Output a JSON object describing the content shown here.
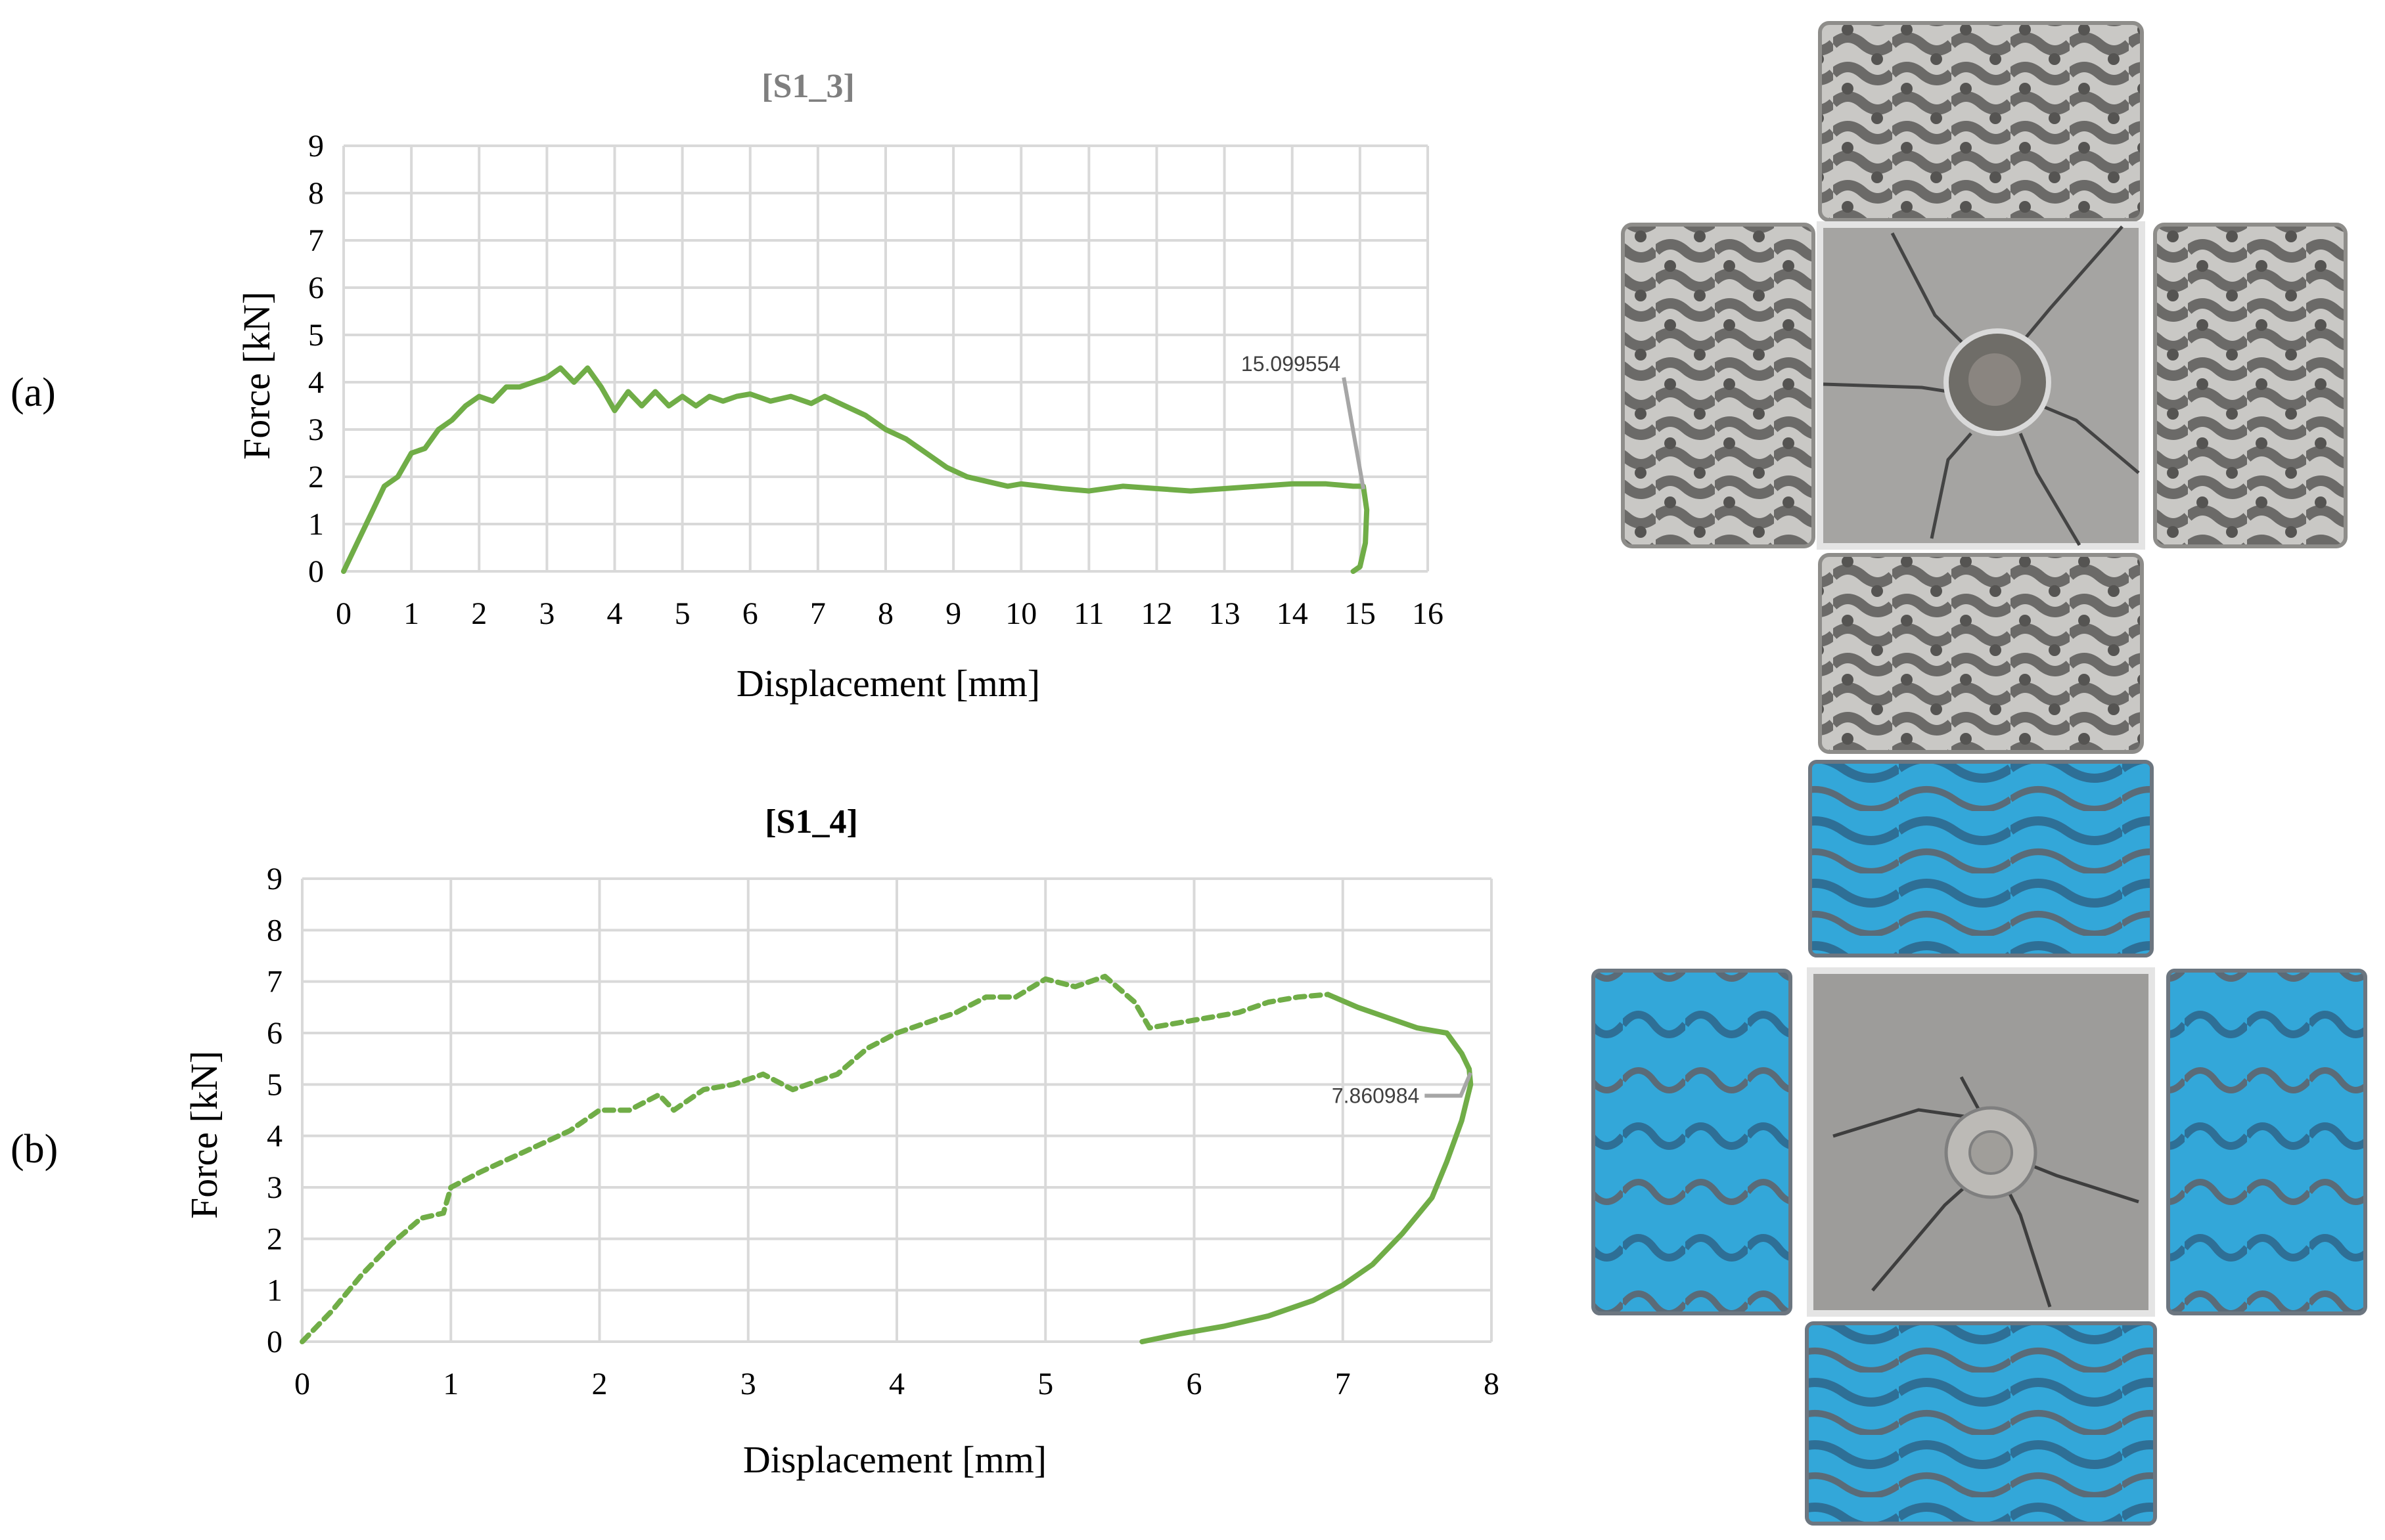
{
  "panel_labels": [
    "(a)",
    "(b)"
  ],
  "colors": {
    "series": "#70ad47",
    "grid": "#d9d9d9",
    "title_a": "#7f7f7f",
    "title_b": "#000000",
    "annotation": "#a6a6a6"
  },
  "chart_data": [
    {
      "type": "line",
      "title": "[S1_3]",
      "xlabel": "Displacement [mm]",
      "ylabel": "Force [kN]",
      "xlim": [
        0,
        16
      ],
      "ylim": [
        0,
        9
      ],
      "xticks": [
        "0",
        "1",
        "2",
        "3",
        "4",
        "5",
        "6",
        "7",
        "8",
        "9",
        "10",
        "11",
        "12",
        "13",
        "14",
        "15",
        "16"
      ],
      "yticks": [
        "0",
        "1",
        "2",
        "3",
        "4",
        "5",
        "6",
        "7",
        "8",
        "9"
      ],
      "grid": true,
      "series": [
        {
          "line_style": "solid",
          "x": [
            0,
            0.2,
            0.4,
            0.6,
            0.8,
            1.0,
            1.2,
            1.4,
            1.6,
            1.8,
            2.0,
            2.2,
            2.4,
            2.6,
            2.8,
            3.0,
            3.2,
            3.4,
            3.6,
            3.8,
            4.0,
            4.2,
            4.4,
            4.6,
            4.8,
            5.0,
            5.2,
            5.4,
            5.6,
            5.8,
            6.0,
            6.3,
            6.6,
            6.9,
            7.1,
            7.4,
            7.7,
            8.0,
            8.3,
            8.6,
            8.9,
            9.2,
            9.5,
            9.8,
            10.0,
            10.3,
            10.6,
            11.0,
            11.5,
            12.0,
            12.5,
            13.0,
            13.5,
            14.0,
            14.5,
            14.9,
            15.05,
            15.1,
            15.08,
            15.0,
            14.9
          ],
          "y": [
            0,
            0.6,
            1.2,
            1.8,
            2.0,
            2.5,
            2.6,
            3.0,
            3.2,
            3.5,
            3.7,
            3.6,
            3.9,
            3.9,
            4.0,
            4.1,
            4.3,
            4.0,
            4.3,
            3.9,
            3.4,
            3.8,
            3.5,
            3.8,
            3.5,
            3.7,
            3.5,
            3.7,
            3.6,
            3.7,
            3.75,
            3.6,
            3.7,
            3.55,
            3.7,
            3.5,
            3.3,
            3.0,
            2.8,
            2.5,
            2.2,
            2.0,
            1.9,
            1.8,
            1.85,
            1.8,
            1.75,
            1.7,
            1.8,
            1.75,
            1.7,
            1.75,
            1.8,
            1.85,
            1.85,
            1.8,
            1.8,
            1.3,
            0.6,
            0.1,
            0
          ]
        }
      ],
      "annotations": [
        {
          "text": "15.099554",
          "x": 15.1,
          "y": 1.6
        }
      ]
    },
    {
      "type": "line",
      "title": "[S1_4]",
      "xlabel": "Displacement [mm]",
      "ylabel": "Force [kN]",
      "xlim": [
        0,
        8
      ],
      "ylim": [
        0,
        9
      ],
      "xticks": [
        "0",
        "1",
        "2",
        "3",
        "4",
        "5",
        "6",
        "7",
        "8"
      ],
      "yticks": [
        "0",
        "1",
        "2",
        "3",
        "4",
        "5",
        "6",
        "7",
        "8",
        "9"
      ],
      "grid": true,
      "series": [
        {
          "line_style": "dashed",
          "x": [
            0,
            0.2,
            0.4,
            0.6,
            0.8,
            0.95,
            1.0,
            1.2,
            1.5,
            1.8,
            2.0,
            2.2,
            2.4,
            2.5,
            2.7,
            2.9,
            3.0,
            3.1,
            3.3,
            3.6,
            3.8,
            4.0,
            4.2,
            4.4,
            4.6,
            4.8,
            5.0,
            5.2,
            5.4,
            5.6,
            5.7,
            5.9,
            6.1,
            6.3,
            6.5,
            6.7,
            6.9
          ],
          "y": [
            0,
            0.6,
            1.3,
            1.9,
            2.4,
            2.5,
            3.0,
            3.3,
            3.7,
            4.1,
            4.5,
            4.5,
            4.8,
            4.5,
            4.9,
            5.0,
            5.1,
            5.2,
            4.9,
            5.2,
            5.7,
            6.0,
            6.2,
            6.4,
            6.7,
            6.7,
            7.05,
            6.9,
            7.1,
            6.6,
            6.1,
            6.2,
            6.3,
            6.4,
            6.6,
            6.7,
            6.75
          ]
        },
        {
          "line_style": "solid",
          "x": [
            6.9,
            7.1,
            7.3,
            7.5,
            7.7,
            7.8,
            7.85,
            7.86,
            7.8,
            7.7,
            7.6,
            7.4,
            7.2,
            7.0,
            6.8,
            6.5,
            6.2,
            5.9,
            5.65
          ],
          "y": [
            6.75,
            6.5,
            6.3,
            6.1,
            6.0,
            5.6,
            5.3,
            5.0,
            4.3,
            3.5,
            2.8,
            2.1,
            1.5,
            1.1,
            0.8,
            0.5,
            0.3,
            0.15,
            0
          ]
        }
      ],
      "annotations": [
        {
          "text": "7.860984",
          "x": 7.86,
          "y": 5.1
        }
      ]
    }
  ]
}
